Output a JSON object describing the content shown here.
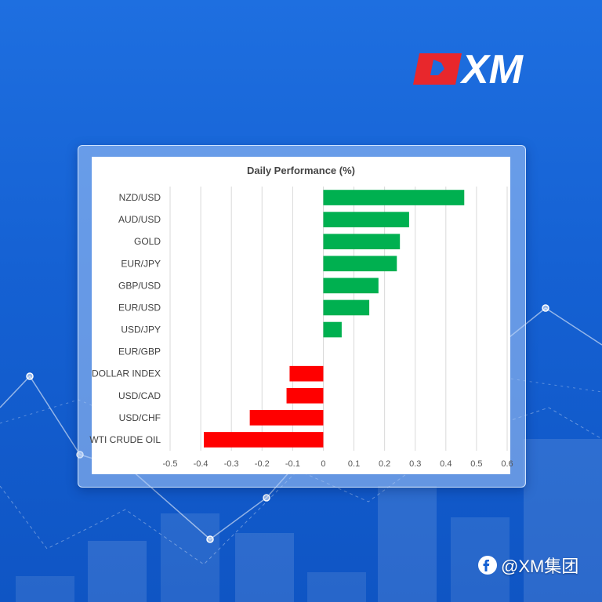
{
  "brand": {
    "logo_text": "XM",
    "accent": "#e8272c"
  },
  "watermark": {
    "text": "@XM集团"
  },
  "colors": {
    "positive": "#00b050",
    "negative": "#ff0000",
    "grid": "#d9d9d9"
  },
  "chart_data": {
    "type": "bar",
    "orientation": "horizontal",
    "title": "Daily Performance (%)",
    "categories": [
      "NZD/USD",
      "AUD/USD",
      "GOLD",
      "EUR/JPY",
      "GBP/USD",
      "EUR/USD",
      "USD/JPY",
      "EUR/GBP",
      "DOLLAR INDEX",
      "USD/CAD",
      "USD/CHF",
      "WTI CRUDE OIL"
    ],
    "values": [
      0.46,
      0.28,
      0.25,
      0.24,
      0.18,
      0.15,
      0.06,
      0.0,
      -0.11,
      -0.12,
      -0.24,
      -0.39
    ],
    "xlim": [
      -0.5,
      0.6
    ],
    "ticks": [
      -0.5,
      -0.4,
      -0.3,
      -0.2,
      -0.1,
      0,
      0.1,
      0.2,
      0.3,
      0.4,
      0.5,
      0.6
    ],
    "tick_labels": [
      "-0.5",
      "-0.4",
      "-0.3",
      "-0.2",
      "-0.1",
      "0",
      "0.1",
      "0.2",
      "0.3",
      "0.4",
      "0.5",
      "0.6"
    ],
    "grid": true,
    "legend": "none"
  }
}
